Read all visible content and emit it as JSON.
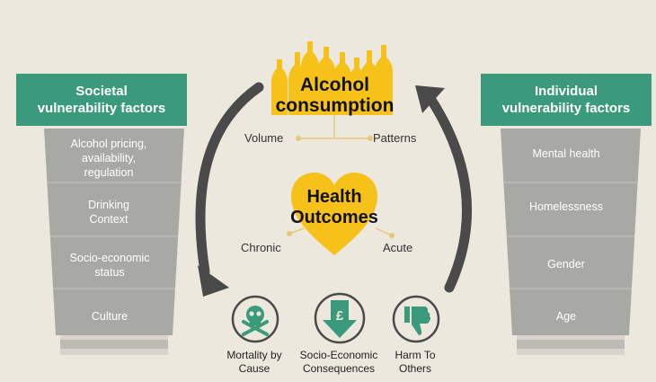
{
  "left": {
    "banner": "Societal vulnerability factors",
    "items": [
      "Alcohol pricing, availability, regulation",
      "Drinking Context",
      "Socio-economic status",
      "Culture"
    ]
  },
  "right": {
    "banner": "Individual vulnerability factors",
    "items": [
      "Mental health",
      "Homelessness",
      "Gender",
      "Age"
    ]
  },
  "center": {
    "alcohol_title_line1": "Alcohol",
    "alcohol_title_line2": "consumption",
    "volume": "Volume",
    "patterns": "Patterns",
    "health_line1": "Health",
    "health_line2": "Outcomes",
    "chronic": "Chronic",
    "acute": "Acute"
  },
  "outcomes": [
    {
      "icon": "skull-crossbones-icon",
      "label_line1": "Mortality by",
      "label_line2": "Cause"
    },
    {
      "icon": "pound-down-arrow-icon",
      "label_line1": "Socio-Economic",
      "label_line2": "Consequences"
    },
    {
      "icon": "thumbs-down-icon",
      "label_line1": "Harm To",
      "label_line2": "Others"
    }
  ],
  "colors": {
    "background": "#ece8dd",
    "green": "#3a9a7b",
    "yellow": "#f6c21a",
    "glass": "#a8a8a4",
    "arrow": "#4a4a4a"
  }
}
